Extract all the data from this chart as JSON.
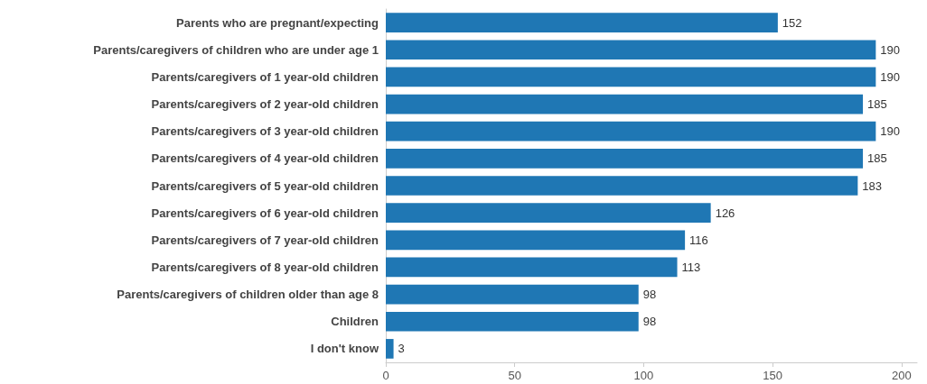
{
  "chart_data": {
    "type": "bar",
    "orientation": "horizontal",
    "categories": [
      "Parents who are pregnant/expecting",
      "Parents/caregivers of children who are under age 1",
      "Parents/caregivers of 1 year-old children",
      "Parents/caregivers of 2 year-old children",
      "Parents/caregivers of 3 year-old children",
      "Parents/caregivers of 4 year-old children",
      "Parents/caregivers of 5 year-old children",
      "Parents/caregivers of 6 year-old children",
      "Parents/caregivers of 7 year-old children",
      "Parents/caregivers of 8 year-old children",
      "Parents/caregivers of children older than age 8",
      "Children",
      "I don't know"
    ],
    "values": [
      152,
      190,
      190,
      185,
      190,
      185,
      183,
      126,
      116,
      113,
      98,
      98,
      3
    ],
    "color": "#1f77b4",
    "xlim": [
      0,
      206
    ],
    "xticks": [
      0,
      50,
      100,
      150,
      200
    ],
    "data_labels": true
  }
}
